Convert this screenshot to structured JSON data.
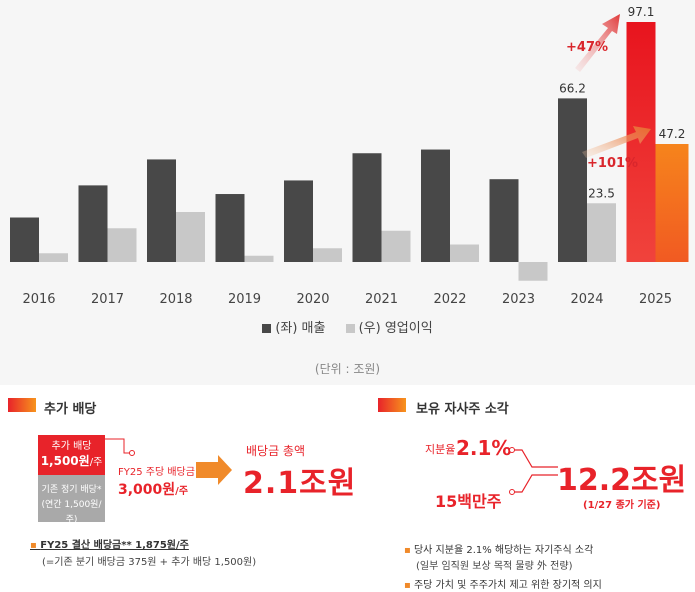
{
  "chart_data": {
    "type": "bar",
    "categories": [
      "2016",
      "2017",
      "2018",
      "2019",
      "2020",
      "2021",
      "2022",
      "2023",
      "2024",
      "2025"
    ],
    "series": [
      {
        "name": "(좌) 매출",
        "axis": "left",
        "color": "#484848",
        "values": [
          18.0,
          31.0,
          41.5,
          27.5,
          33.0,
          44.0,
          45.5,
          33.5,
          66.2,
          97.1
        ]
      },
      {
        "name": "(우) 영업이익",
        "axis": "right",
        "color": "#c8c8c8",
        "values": [
          3.5,
          13.5,
          20.0,
          2.5,
          5.5,
          12.5,
          7.0,
          -7.5,
          23.5,
          47.2
        ]
      }
    ],
    "data_labels": {
      "2024": {
        "sales": "66.2",
        "op": "23.5"
      },
      "2025": {
        "sales": "97.1",
        "op": "47.2"
      }
    },
    "annotations": [
      {
        "text": "+47%"
      },
      {
        "text": "+101%"
      }
    ],
    "unit_label": "(단위 : 조원)"
  },
  "left": {
    "title": "추가 배당",
    "box_red_line1": "추가 배당",
    "box_red_line2": "1,500원",
    "box_red_unit": "/주",
    "box_gray_line1": "기존 정기 배당*",
    "box_gray_line2": "(연간 1,500원/주)",
    "fy_label": "FY25 주당 배당금",
    "fy_value": "3,000원",
    "fy_unit": "/주",
    "total_label": "배당금 총액",
    "total_value": "2.1조원",
    "note1": "FY25 결산 배당금** 1,875원/주",
    "note2": "(=기존 분기 배당금 375원 + 추가 배당 1,500원)"
  },
  "right": {
    "title": "보유 자사주 소각",
    "ratio_label": "지분율",
    "ratio_value": "2.1%",
    "shares_value": "15백만주",
    "big_value": "12.2조원",
    "big_sub": "(1/27 종가 기준)",
    "bullet1_line1": "당사 지분율 2.1% 해당하는 자기주식 소각",
    "bullet1_line2": "(일부 임직원 보상 목적 물량 外 전량)",
    "bullet2": "주당 가치 및 주주가치 제고 위한 장기적 의지"
  }
}
